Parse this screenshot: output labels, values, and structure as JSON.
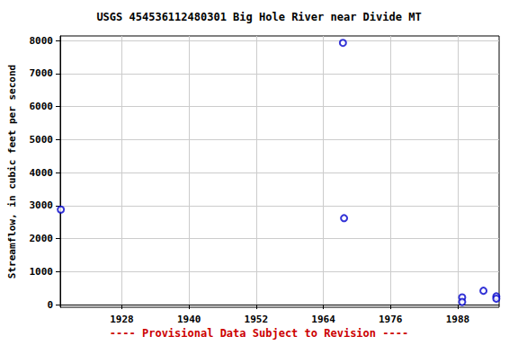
{
  "chart_data": {
    "type": "scatter",
    "title": "USGS 454536112480301 Big Hole River near Divide MT",
    "y_label": "Streamflow, in cubic feet per second",
    "annotation": "---- Provisional Data Subject to Revision ----",
    "x": [
      1917.1,
      1967.5,
      1967.7,
      1988.8,
      1988.8,
      1992.6,
      1994.9,
      1994.9
    ],
    "values": [
      2880,
      7930,
      2620,
      220,
      80,
      420,
      250,
      180
    ],
    "color": "#0000cc",
    "marker": "circle",
    "xlim": [
      1917,
      1995.4
    ],
    "xticks": [
      1928,
      1940,
      1952,
      1964,
      1976,
      1988
    ],
    "ylim": [
      -80,
      8140
    ],
    "yticks": [
      0,
      1000,
      2000,
      3000,
      4000,
      5000,
      6000,
      7000,
      8000
    ],
    "grid": true
  }
}
